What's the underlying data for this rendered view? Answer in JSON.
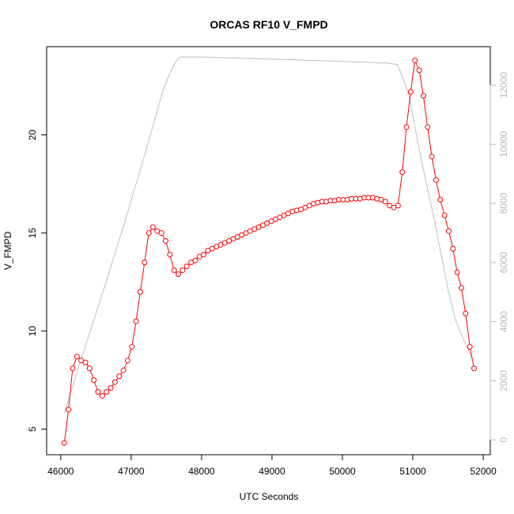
{
  "chart_data": {
    "type": "line",
    "title": "ORCAS RF10 V_FMPD",
    "xlabel": "UTC Seconds",
    "ylabel": "V_FMPD",
    "xlim": [
      45800,
      52100
    ],
    "ylim": [
      3.7,
      24.5
    ],
    "y2lim": [
      -500,
      13300
    ],
    "xticks": [
      46000,
      47000,
      48000,
      49000,
      50000,
      51000,
      52000
    ],
    "xtick_labels": [
      "46000",
      "47000",
      "48000",
      "49000",
      "50000",
      "51000",
      "52000"
    ],
    "yticks": [
      5,
      10,
      15,
      20
    ],
    "ytick_labels": [
      "5",
      "10",
      "15",
      "20"
    ],
    "y2ticks": [
      0,
      2000,
      4000,
      6000,
      8000,
      10000,
      12000
    ],
    "y2tick_labels": [
      "0",
      "2000",
      "4000",
      "6000",
      "8000",
      "10000",
      "12000"
    ],
    "grid": false,
    "series": [
      {
        "axis": "left",
        "color": "#ff0000",
        "style": "line-with-open-circles",
        "points": [
          [
            46050,
            4.3
          ],
          [
            46110,
            6.0
          ],
          [
            46170,
            8.1
          ],
          [
            46230,
            8.7
          ],
          [
            46290,
            8.5
          ],
          [
            46350,
            8.4
          ],
          [
            46410,
            8.1
          ],
          [
            46470,
            7.5
          ],
          [
            46530,
            6.9
          ],
          [
            46590,
            6.7
          ],
          [
            46650,
            6.9
          ],
          [
            46710,
            7.1
          ],
          [
            46770,
            7.4
          ],
          [
            46830,
            7.7
          ],
          [
            46890,
            8.0
          ],
          [
            46950,
            8.5
          ],
          [
            47010,
            9.2
          ],
          [
            47070,
            10.5
          ],
          [
            47130,
            12.0
          ],
          [
            47190,
            13.5
          ],
          [
            47250,
            15.0
          ],
          [
            47310,
            15.3
          ],
          [
            47370,
            15.1
          ],
          [
            47430,
            15.0
          ],
          [
            47490,
            14.6
          ],
          [
            47550,
            13.9
          ],
          [
            47610,
            13.1
          ],
          [
            47670,
            12.9
          ],
          [
            47730,
            13.1
          ],
          [
            47790,
            13.3
          ],
          [
            47850,
            13.5
          ],
          [
            47910,
            13.6
          ],
          [
            47970,
            13.8
          ],
          [
            48030,
            13.9
          ],
          [
            48090,
            14.1
          ],
          [
            48150,
            14.2
          ],
          [
            48210,
            14.3
          ],
          [
            48270,
            14.4
          ],
          [
            48330,
            14.5
          ],
          [
            48390,
            14.6
          ],
          [
            48450,
            14.7
          ],
          [
            48510,
            14.8
          ],
          [
            48570,
            14.9
          ],
          [
            48630,
            15.0
          ],
          [
            48690,
            15.1
          ],
          [
            48750,
            15.2
          ],
          [
            48810,
            15.3
          ],
          [
            48870,
            15.4
          ],
          [
            48930,
            15.5
          ],
          [
            48990,
            15.6
          ],
          [
            49050,
            15.7
          ],
          [
            49110,
            15.8
          ],
          [
            49170,
            15.9
          ],
          [
            49230,
            16.0
          ],
          [
            49290,
            16.1
          ],
          [
            49350,
            16.15
          ],
          [
            49410,
            16.2
          ],
          [
            49470,
            16.3
          ],
          [
            49530,
            16.4
          ],
          [
            49590,
            16.5
          ],
          [
            49650,
            16.55
          ],
          [
            49710,
            16.6
          ],
          [
            49770,
            16.6
          ],
          [
            49830,
            16.65
          ],
          [
            49890,
            16.65
          ],
          [
            49950,
            16.7
          ],
          [
            50010,
            16.7
          ],
          [
            50070,
            16.7
          ],
          [
            50130,
            16.75
          ],
          [
            50190,
            16.75
          ],
          [
            50250,
            16.75
          ],
          [
            50310,
            16.8
          ],
          [
            50370,
            16.8
          ],
          [
            50430,
            16.8
          ],
          [
            50490,
            16.75
          ],
          [
            50550,
            16.7
          ],
          [
            50610,
            16.6
          ],
          [
            50670,
            16.4
          ],
          [
            50730,
            16.3
          ],
          [
            50790,
            16.4
          ],
          [
            50850,
            18.1
          ],
          [
            50910,
            20.4
          ],
          [
            50970,
            22.2
          ],
          [
            51030,
            23.8
          ],
          [
            51090,
            23.3
          ],
          [
            51150,
            22.0
          ],
          [
            51210,
            20.4
          ],
          [
            51270,
            18.9
          ],
          [
            51330,
            17.7
          ],
          [
            51390,
            16.7
          ],
          [
            51450,
            15.9
          ],
          [
            51510,
            15.1
          ],
          [
            51570,
            14.2
          ],
          [
            51630,
            13.0
          ],
          [
            51690,
            12.2
          ],
          [
            51750,
            10.9
          ],
          [
            51810,
            9.2
          ],
          [
            51870,
            8.1
          ]
        ]
      },
      {
        "axis": "right",
        "color": "#bebebe",
        "style": "line",
        "points": [
          [
            46050,
            900
          ],
          [
            46300,
            2800
          ],
          [
            46600,
            5000
          ],
          [
            46900,
            7300
          ],
          [
            47200,
            9700
          ],
          [
            47450,
            11800
          ],
          [
            47550,
            12400
          ],
          [
            47650,
            12850
          ],
          [
            47700,
            12950
          ],
          [
            48000,
            12950
          ],
          [
            49000,
            12880
          ],
          [
            50000,
            12800
          ],
          [
            50600,
            12750
          ],
          [
            50780,
            12700
          ],
          [
            50850,
            12300
          ],
          [
            50950,
            11600
          ],
          [
            51100,
            9700
          ],
          [
            51300,
            7500
          ],
          [
            51500,
            5100
          ],
          [
            51600,
            4100
          ],
          [
            51700,
            3500
          ],
          [
            51800,
            3000
          ],
          [
            51830,
            2800
          ]
        ]
      }
    ]
  }
}
